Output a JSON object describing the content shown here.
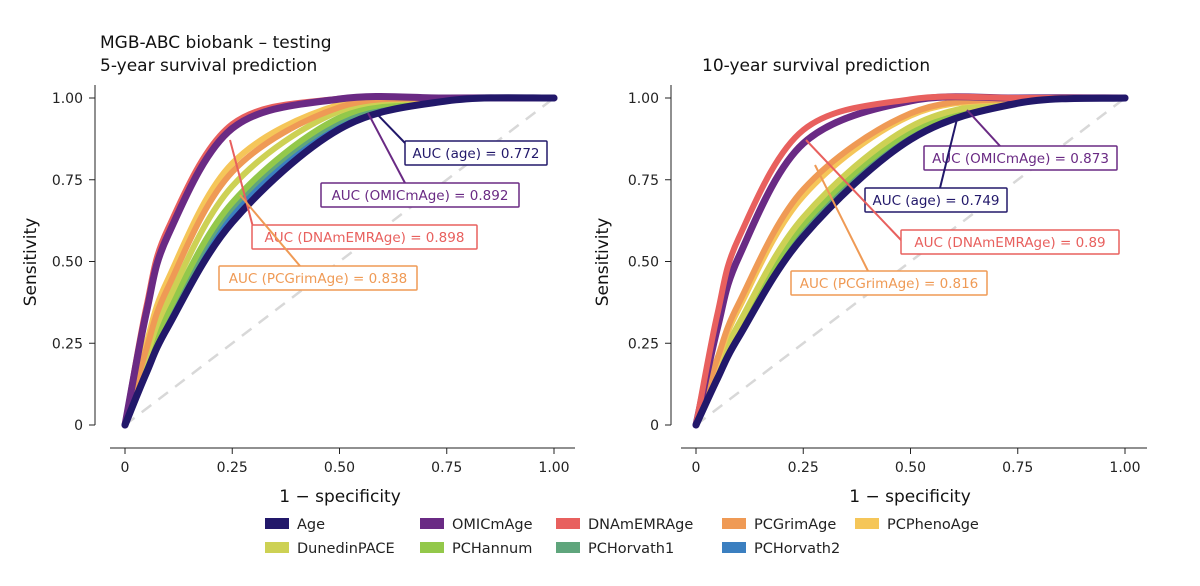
{
  "header": {
    "title_line1": "MGB-ABC biobank – testing"
  },
  "chart_data": [
    {
      "type": "line",
      "title": "5-year survival prediction",
      "xlabel": "1 − specificity",
      "ylabel": "Sensitivity",
      "xlim": [
        0,
        1
      ],
      "ylim": [
        0,
        1
      ],
      "xticks": [
        "0",
        "0.25",
        "0.50",
        "0.75",
        "1.00"
      ],
      "yticks": [
        "0",
        "0.25",
        "0.50",
        "0.75",
        "1.00"
      ],
      "grid": false,
      "diagonal_reference": true,
      "x": [
        0,
        0.05,
        0.1,
        0.25,
        0.5,
        0.75,
        1
      ],
      "series": [
        {
          "name": "PCHorvath2",
          "values": [
            0,
            0.17,
            0.32,
            0.645,
            0.92,
            0.993,
            1
          ]
        },
        {
          "name": "PCHorvath1",
          "values": [
            0,
            0.177,
            0.33,
            0.665,
            0.93,
            0.995,
            1
          ]
        },
        {
          "name": "PCHannum",
          "values": [
            0,
            0.185,
            0.345,
            0.68,
            0.94,
            0.996,
            1
          ]
        },
        {
          "name": "DunedinPACE",
          "values": [
            0,
            0.21,
            0.38,
            0.73,
            0.96,
            0.998,
            1
          ]
        },
        {
          "name": "PCPhenoAge",
          "values": [
            0,
            0.25,
            0.445,
            0.8,
            0.98,
            1,
            1
          ]
        },
        {
          "name": "PCGrimAge",
          "values": [
            0,
            0.233,
            0.42,
            0.774,
            0.972,
            0.999,
            1
          ]
        },
        {
          "name": "DNAmEMRAge",
          "values": [
            0,
            0.363,
            0.6,
            0.92,
            0.998,
            1,
            1
          ]
        },
        {
          "name": "OMICmAge",
          "values": [
            0,
            0.345,
            0.58,
            0.907,
            0.997,
            1,
            1
          ]
        },
        {
          "name": "Age",
          "values": [
            0,
            0.16,
            0.3,
            0.62,
            0.905,
            0.991,
            1
          ]
        }
      ],
      "annotations": [
        {
          "text": "AUC (age) = 0.772",
          "series": "Age"
        },
        {
          "text": "AUC (OMICmAge) = 0.892",
          "series": "OMICmAge"
        },
        {
          "text": "AUC (DNAmEMRAge) = 0.898",
          "series": "DNAmEMRAge"
        },
        {
          "text": "AUC (PCGrimAge) = 0.838",
          "series": "PCGrimAge"
        }
      ]
    },
    {
      "type": "line",
      "title": "10-year survival prediction",
      "xlabel": "1 − specificity",
      "ylabel": "Sensitivity",
      "xlim": [
        0,
        1
      ],
      "ylim": [
        0,
        1
      ],
      "xticks": [
        "0",
        "0.25",
        "0.50",
        "0.75",
        "1.00"
      ],
      "yticks": [
        "0",
        "0.25",
        "0.50",
        "0.75",
        "1.00"
      ],
      "grid": false,
      "diagonal_reference": true,
      "x": [
        0,
        0.05,
        0.1,
        0.25,
        0.5,
        0.75,
        1
      ],
      "series": [
        {
          "name": "PCHorvath2",
          "values": [
            0,
            0.142,
            0.271,
            0.58,
            0.875,
            0.984,
            1
          ]
        },
        {
          "name": "PCHorvath1",
          "values": [
            0,
            0.147,
            0.279,
            0.59,
            0.883,
            0.986,
            1
          ]
        },
        {
          "name": "PCHannum",
          "values": [
            0,
            0.156,
            0.294,
            0.613,
            0.898,
            0.99,
            1
          ]
        },
        {
          "name": "DunedinPACE",
          "values": [
            0,
            0.165,
            0.31,
            0.635,
            0.912,
            0.992,
            1
          ]
        },
        {
          "name": "PCPhenoAge",
          "values": [
            0,
            0.194,
            0.357,
            0.7,
            0.946,
            0.997,
            1
          ]
        },
        {
          "name": "PCGrimAge",
          "values": [
            0,
            0.204,
            0.373,
            0.72,
            0.953,
            0.998,
            1
          ]
        },
        {
          "name": "OMICmAge",
          "values": [
            0,
            0.297,
            0.515,
            0.861,
            0.991,
            1,
            1
          ]
        },
        {
          "name": "DNAmEMRAge",
          "values": [
            0,
            0.34,
            0.573,
            0.902,
            0.996,
            1,
            1
          ]
        },
        {
          "name": "Age",
          "values": [
            0,
            0.142,
            0.27,
            0.576,
            0.873,
            0.984,
            1
          ]
        }
      ],
      "annotations": [
        {
          "text": "AUC (OMICmAge) = 0.873",
          "series": "OMICmAge"
        },
        {
          "text": "AUC (age) = 0.749",
          "series": "Age"
        },
        {
          "text": "AUC (DNAmEMRAge) = 0.89",
          "series": "DNAmEMRAge"
        },
        {
          "text": "AUC (PCGrimAge) = 0.816",
          "series": "PCGrimAge"
        }
      ]
    }
  ],
  "legend": {
    "placement": "bottom",
    "items": [
      {
        "label": "Age",
        "color": "#22186a"
      },
      {
        "label": "OMICmAge",
        "color": "#6a2a84"
      },
      {
        "label": "DNAmEMRAge",
        "color": "#e8605e"
      },
      {
        "label": "PCGrimAge",
        "color": "#ef9a55"
      },
      {
        "label": "PCPhenoAge",
        "color": "#f5c659"
      },
      {
        "label": "DunedinPACE",
        "color": "#cdd154"
      },
      {
        "label": "PCHannum",
        "color": "#93c84a"
      },
      {
        "label": "PCHorvath1",
        "color": "#5fa57c"
      },
      {
        "label": "PCHorvath2",
        "color": "#3b7fc0"
      }
    ]
  }
}
